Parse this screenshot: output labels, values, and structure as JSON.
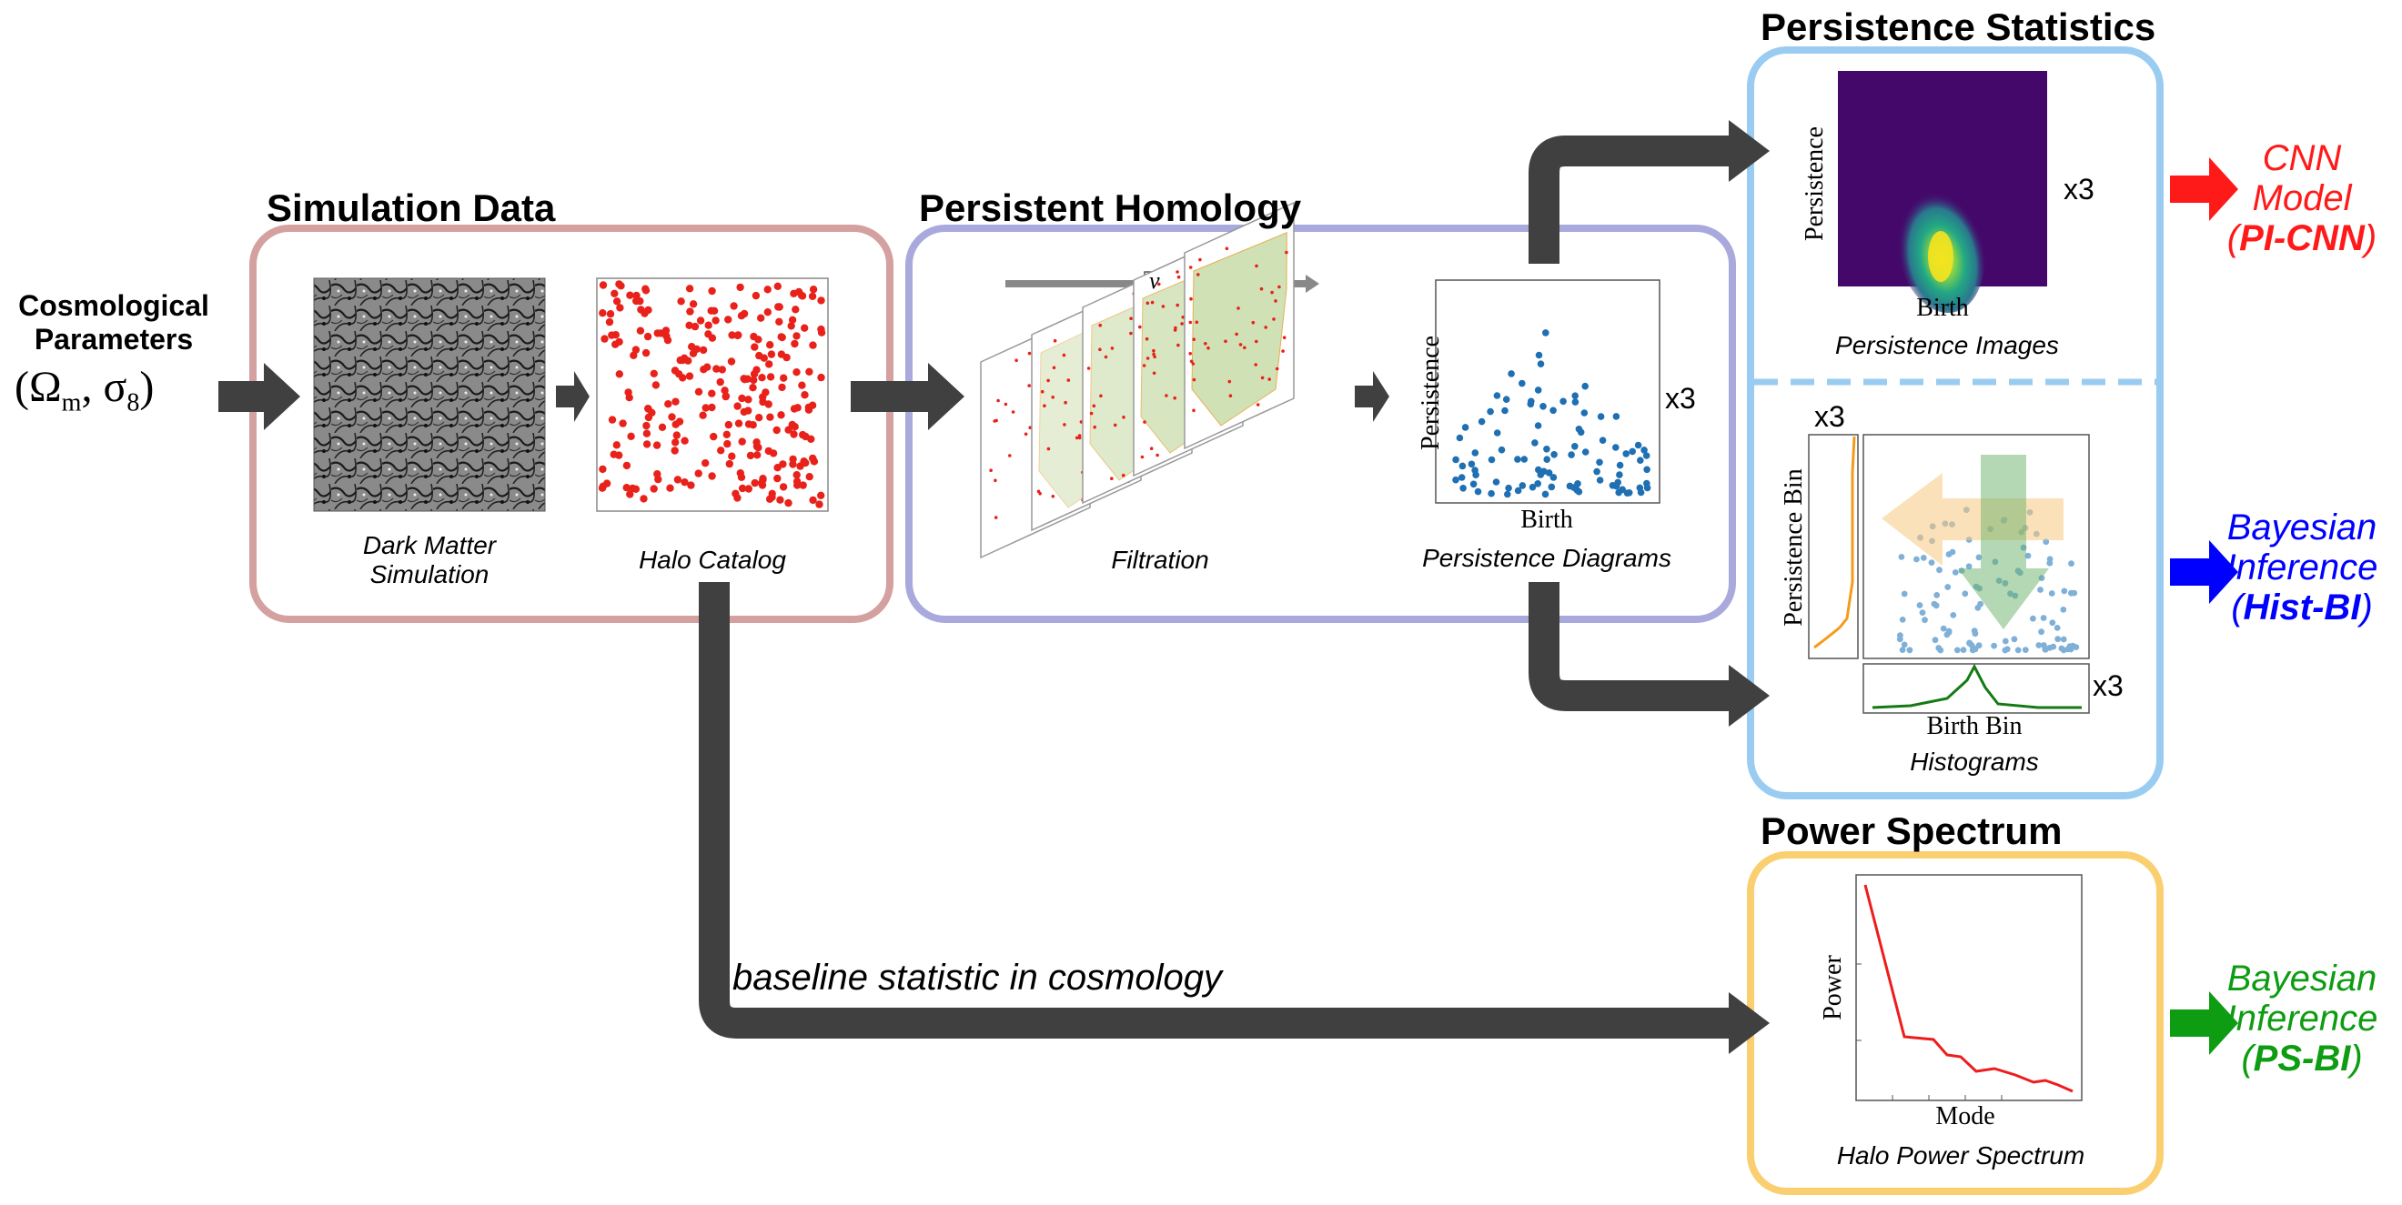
{
  "input": {
    "title_line1": "Cosmological",
    "title_line2": "Parameters",
    "math_open": "(Ω",
    "math_sub_m": "m",
    "math_mid": ", σ",
    "math_sub_8": "8",
    "math_close": ")"
  },
  "sections": {
    "simulation": "Simulation Data",
    "homology": "Persistent Homology",
    "persistence_stats": "Persistence Statistics",
    "power_spectrum": "Power Spectrum"
  },
  "captions": {
    "dm_line1": "Dark Matter",
    "dm_line2": "Simulation",
    "halo": "Halo Catalog",
    "filtration": "Filtration",
    "diagrams": "Persistence Diagrams",
    "images": "Persistence Images",
    "histograms": "Histograms",
    "halo_ps": "Halo Power Spectrum",
    "baseline": "baseline statistic in cosmology"
  },
  "labels": {
    "nu": "ν",
    "persistence": "Persistence",
    "birth": "Birth",
    "persistence_bin": "Persistence Bin",
    "birth_bin": "Birth Bin",
    "power": "Power",
    "mode": "Mode",
    "x3": "x3"
  },
  "outputs": {
    "cnn_line1": "CNN",
    "cnn_line2": "Model",
    "cnn_open": "(",
    "cnn_bold": "PI-CNN",
    "cnn_close": ")",
    "hist_line1": "Bayesian",
    "hist_line2": "Inference",
    "hist_open": "(",
    "hist_bold": "Hist-BI",
    "hist_close": ")",
    "ps_line1": "Bayesian",
    "ps_line2": "Inference",
    "ps_open": "(",
    "ps_bold": "PS-BI",
    "ps_close": ")"
  },
  "colors": {
    "simulation_box": "#d4a0a0",
    "homology_box": "#a9a9dd",
    "stats_box": "#99ccf0",
    "power_box": "#f9cf70",
    "arrow_dark": "#404040",
    "halo_red": "#e8221a",
    "cnn_red": "#ff1a1a",
    "hist_blue": "#0000ff",
    "ps_green": "#0e9c12",
    "diagram_blue": "#1f6fb3"
  }
}
